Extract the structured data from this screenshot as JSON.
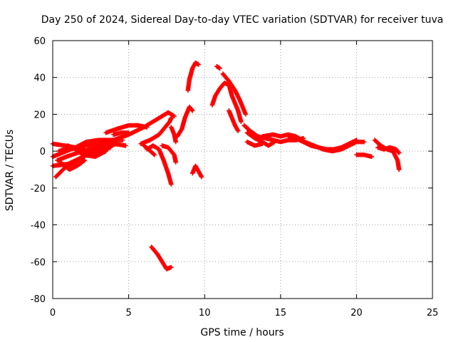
{
  "chart_data": {
    "type": "scatter",
    "title": "Day 250 of 2024, Sidereal Day-to-day VTEC variation (SDTVAR) for receiver tuva",
    "xlabel": "GPS time / hours",
    "ylabel": "SDTVAR / TECUs",
    "xlim": [
      0,
      25
    ],
    "ylim": [
      -80,
      60
    ],
    "xticks": [
      0,
      5,
      10,
      15,
      20,
      25
    ],
    "yticks": [
      -80,
      -60,
      -40,
      -20,
      0,
      20,
      40,
      60
    ],
    "grid": true,
    "marker": "+",
    "series_color": "#ff0000",
    "tracks": [
      [
        [
          0,
          -3
        ],
        [
          0.6,
          -1
        ],
        [
          1.2,
          1
        ],
        [
          2,
          3
        ],
        [
          3,
          4
        ],
        [
          4,
          6
        ],
        [
          5,
          9
        ],
        [
          6,
          13
        ],
        [
          7,
          18
        ],
        [
          7.6,
          21
        ],
        [
          8,
          19
        ]
      ],
      [
        [
          0,
          4
        ],
        [
          0.8,
          3
        ],
        [
          1.5,
          2
        ],
        [
          2.2,
          5
        ],
        [
          3,
          6
        ],
        [
          3.8,
          6
        ],
        [
          4.6,
          6
        ]
      ],
      [
        [
          0.2,
          -14
        ],
        [
          0.8,
          -9
        ],
        [
          1.5,
          -6
        ],
        [
          2.2,
          -2
        ],
        [
          3,
          2
        ],
        [
          3.5,
          4
        ]
      ],
      [
        [
          0,
          -8
        ],
        [
          1,
          -7
        ],
        [
          2,
          -3
        ],
        [
          2.8,
          0
        ],
        [
          3.5,
          2
        ],
        [
          4.2,
          4
        ]
      ],
      [
        [
          0.4,
          0
        ],
        [
          1.2,
          2
        ],
        [
          2,
          1
        ],
        [
          2.6,
          -1
        ],
        [
          3.2,
          0
        ],
        [
          3.8,
          2
        ]
      ],
      [
        [
          0.3,
          -5
        ],
        [
          0.9,
          -3
        ],
        [
          1.6,
          -1
        ],
        [
          2.4,
          1
        ],
        [
          3.2,
          3
        ],
        [
          4,
          4
        ],
        [
          4.8,
          3
        ]
      ],
      [
        [
          1,
          3
        ],
        [
          1.5,
          1
        ],
        [
          2,
          -2
        ],
        [
          2.8,
          -3
        ],
        [
          3.5,
          0
        ]
      ],
      [
        [
          0.5,
          -6
        ],
        [
          1.1,
          -10
        ],
        [
          1.6,
          -8
        ],
        [
          2.1,
          -5
        ]
      ],
      [
        [
          3.5,
          10
        ],
        [
          4.2,
          12
        ],
        [
          5,
          14
        ],
        [
          5.6,
          14
        ],
        [
          6.2,
          13
        ]
      ],
      [
        [
          5.8,
          4
        ],
        [
          6.4,
          6
        ],
        [
          7,
          9
        ],
        [
          7.4,
          13
        ],
        [
          7.7,
          16
        ],
        [
          7.8,
          18
        ]
      ],
      [
        [
          4,
          9
        ],
        [
          4.5,
          10
        ],
        [
          5,
          10
        ]
      ],
      [
        [
          6.2,
          1
        ],
        [
          6.6,
          3
        ],
        [
          7,
          1
        ],
        [
          7.3,
          -5
        ],
        [
          7.6,
          -12
        ],
        [
          7.8,
          -18
        ]
      ],
      [
        [
          6,
          3
        ],
        [
          6.3,
          1
        ],
        [
          6.7,
          -2
        ]
      ],
      [
        [
          7.2,
          3
        ],
        [
          7.6,
          2
        ],
        [
          8,
          -2
        ],
        [
          8.1,
          -6
        ]
      ],
      [
        [
          8.2,
          8
        ],
        [
          8.5,
          12
        ],
        [
          8.7,
          18
        ],
        [
          9,
          24
        ],
        [
          9.2,
          22
        ]
      ],
      [
        [
          7.8,
          13
        ],
        [
          8,
          9
        ],
        [
          8.1,
          5
        ]
      ],
      [
        [
          6.5,
          -52
        ],
        [
          6.9,
          -56
        ],
        [
          7.2,
          -60
        ],
        [
          7.5,
          -64
        ],
        [
          7.8,
          -63
        ]
      ],
      [
        [
          8.9,
          33
        ],
        [
          9,
          39
        ],
        [
          9.2,
          45
        ],
        [
          9.4,
          48
        ],
        [
          9.6,
          47
        ]
      ],
      [
        [
          9.2,
          -12
        ],
        [
          9.4,
          -8
        ],
        [
          9.6,
          -11
        ],
        [
          9.8,
          -14
        ]
      ],
      [
        [
          10.8,
          46
        ],
        [
          11,
          45
        ]
      ],
      [
        [
          10.5,
          25
        ],
        [
          10.7,
          30
        ],
        [
          11,
          34
        ],
        [
          11.3,
          37
        ],
        [
          11.6,
          36
        ],
        [
          11.8,
          30
        ],
        [
          12,
          26
        ],
        [
          12.2,
          22
        ],
        [
          12.4,
          16
        ]
      ],
      [
        [
          11.2,
          42
        ],
        [
          11.6,
          38
        ],
        [
          12,
          33
        ],
        [
          12.3,
          28
        ],
        [
          12.5,
          24
        ],
        [
          12.7,
          20
        ]
      ],
      [
        [
          11.6,
          22
        ],
        [
          11.8,
          18
        ],
        [
          12,
          14
        ],
        [
          12.2,
          11
        ]
      ],
      [
        [
          12.6,
          14
        ],
        [
          13,
          11
        ],
        [
          13.5,
          8
        ],
        [
          14,
          7
        ],
        [
          14.5,
          6
        ],
        [
          15,
          5
        ],
        [
          15.5,
          6
        ],
        [
          16,
          6
        ],
        [
          16.5,
          7
        ]
      ],
      [
        [
          12.8,
          10
        ],
        [
          13.3,
          7
        ],
        [
          13.8,
          5
        ],
        [
          14.2,
          3
        ],
        [
          14.6,
          5
        ]
      ],
      [
        [
          13.8,
          8
        ],
        [
          14.5,
          9
        ],
        [
          15,
          8
        ],
        [
          15.5,
          9
        ],
        [
          16,
          8
        ],
        [
          16.6,
          5
        ],
        [
          17.2,
          3
        ],
        [
          17.8,
          1
        ],
        [
          18.4,
          0
        ],
        [
          19,
          1
        ],
        [
          19.5,
          3
        ],
        [
          20,
          5
        ],
        [
          20.5,
          5
        ]
      ],
      [
        [
          12.8,
          5
        ],
        [
          13.3,
          3
        ],
        [
          13.8,
          4
        ]
      ],
      [
        [
          15.5,
          8
        ],
        [
          16,
          7
        ],
        [
          16.5,
          5
        ],
        [
          17,
          3
        ],
        [
          17.5,
          2
        ],
        [
          18,
          1
        ],
        [
          18.5,
          1
        ],
        [
          19,
          2
        ],
        [
          19.5,
          4
        ],
        [
          20,
          6
        ]
      ],
      [
        [
          20,
          -2
        ],
        [
          20.5,
          -2
        ],
        [
          21,
          -3
        ]
      ],
      [
        [
          21.2,
          6
        ],
        [
          21.6,
          3
        ],
        [
          22,
          1
        ],
        [
          22.4,
          0
        ],
        [
          22.7,
          -5
        ],
        [
          22.8,
          -10
        ]
      ],
      [
        [
          21.4,
          2
        ],
        [
          21.8,
          1
        ],
        [
          22.2,
          2
        ],
        [
          22.6,
          1
        ],
        [
          22.8,
          -1
        ]
      ]
    ]
  }
}
